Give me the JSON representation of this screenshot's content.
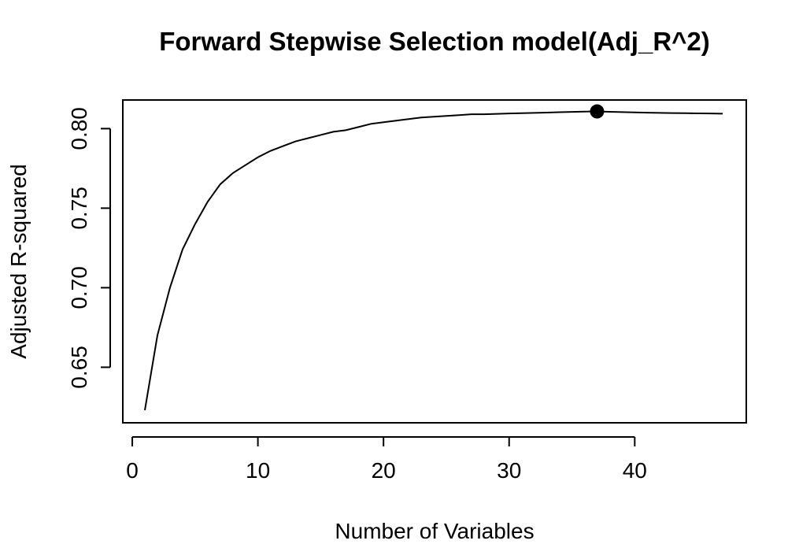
{
  "chart_data": {
    "type": "line",
    "title": "Forward Stepwise Selection model(Adj_R^2)",
    "xlabel": "Number of Variables",
    "ylabel": "Adjusted R-squared",
    "xlim": [
      1,
      47
    ],
    "ylim": [
      0.623,
      0.818
    ],
    "x_ticks": [
      0,
      10,
      20,
      30,
      40
    ],
    "y_ticks": [
      0.65,
      0.7,
      0.75,
      0.8
    ],
    "x_tick_labels": [
      "0",
      "10",
      "20",
      "30",
      "40"
    ],
    "y_tick_labels": [
      "0.65",
      "0.70",
      "0.75",
      "0.80"
    ],
    "grid": false,
    "line_color": "#000000",
    "series": [
      {
        "x": [
          1,
          2,
          3,
          4,
          5,
          6,
          7,
          8,
          9,
          10,
          11,
          12,
          13,
          14,
          15,
          16,
          17,
          18,
          19,
          20,
          21,
          22,
          23,
          24,
          25,
          26,
          27,
          28,
          29,
          30,
          31,
          32,
          33,
          34,
          35,
          36,
          37,
          38,
          39,
          40,
          41,
          42,
          43,
          44,
          45,
          46,
          47
        ],
        "values": [
          0.623,
          0.67,
          0.7,
          0.724,
          0.74,
          0.754,
          0.765,
          0.772,
          0.777,
          0.782,
          0.786,
          0.789,
          0.792,
          0.794,
          0.796,
          0.798,
          0.799,
          0.801,
          0.803,
          0.804,
          0.805,
          0.806,
          0.807,
          0.8075,
          0.808,
          0.8085,
          0.809,
          0.809,
          0.8093,
          0.8095,
          0.8097,
          0.8099,
          0.8101,
          0.8103,
          0.8105,
          0.8107,
          0.8108,
          0.8106,
          0.8104,
          0.8102,
          0.81,
          0.8099,
          0.8098,
          0.8097,
          0.8096,
          0.8095,
          0.8094
        ]
      }
    ],
    "highlight_point": {
      "x": 37,
      "y": 0.8108
    }
  }
}
